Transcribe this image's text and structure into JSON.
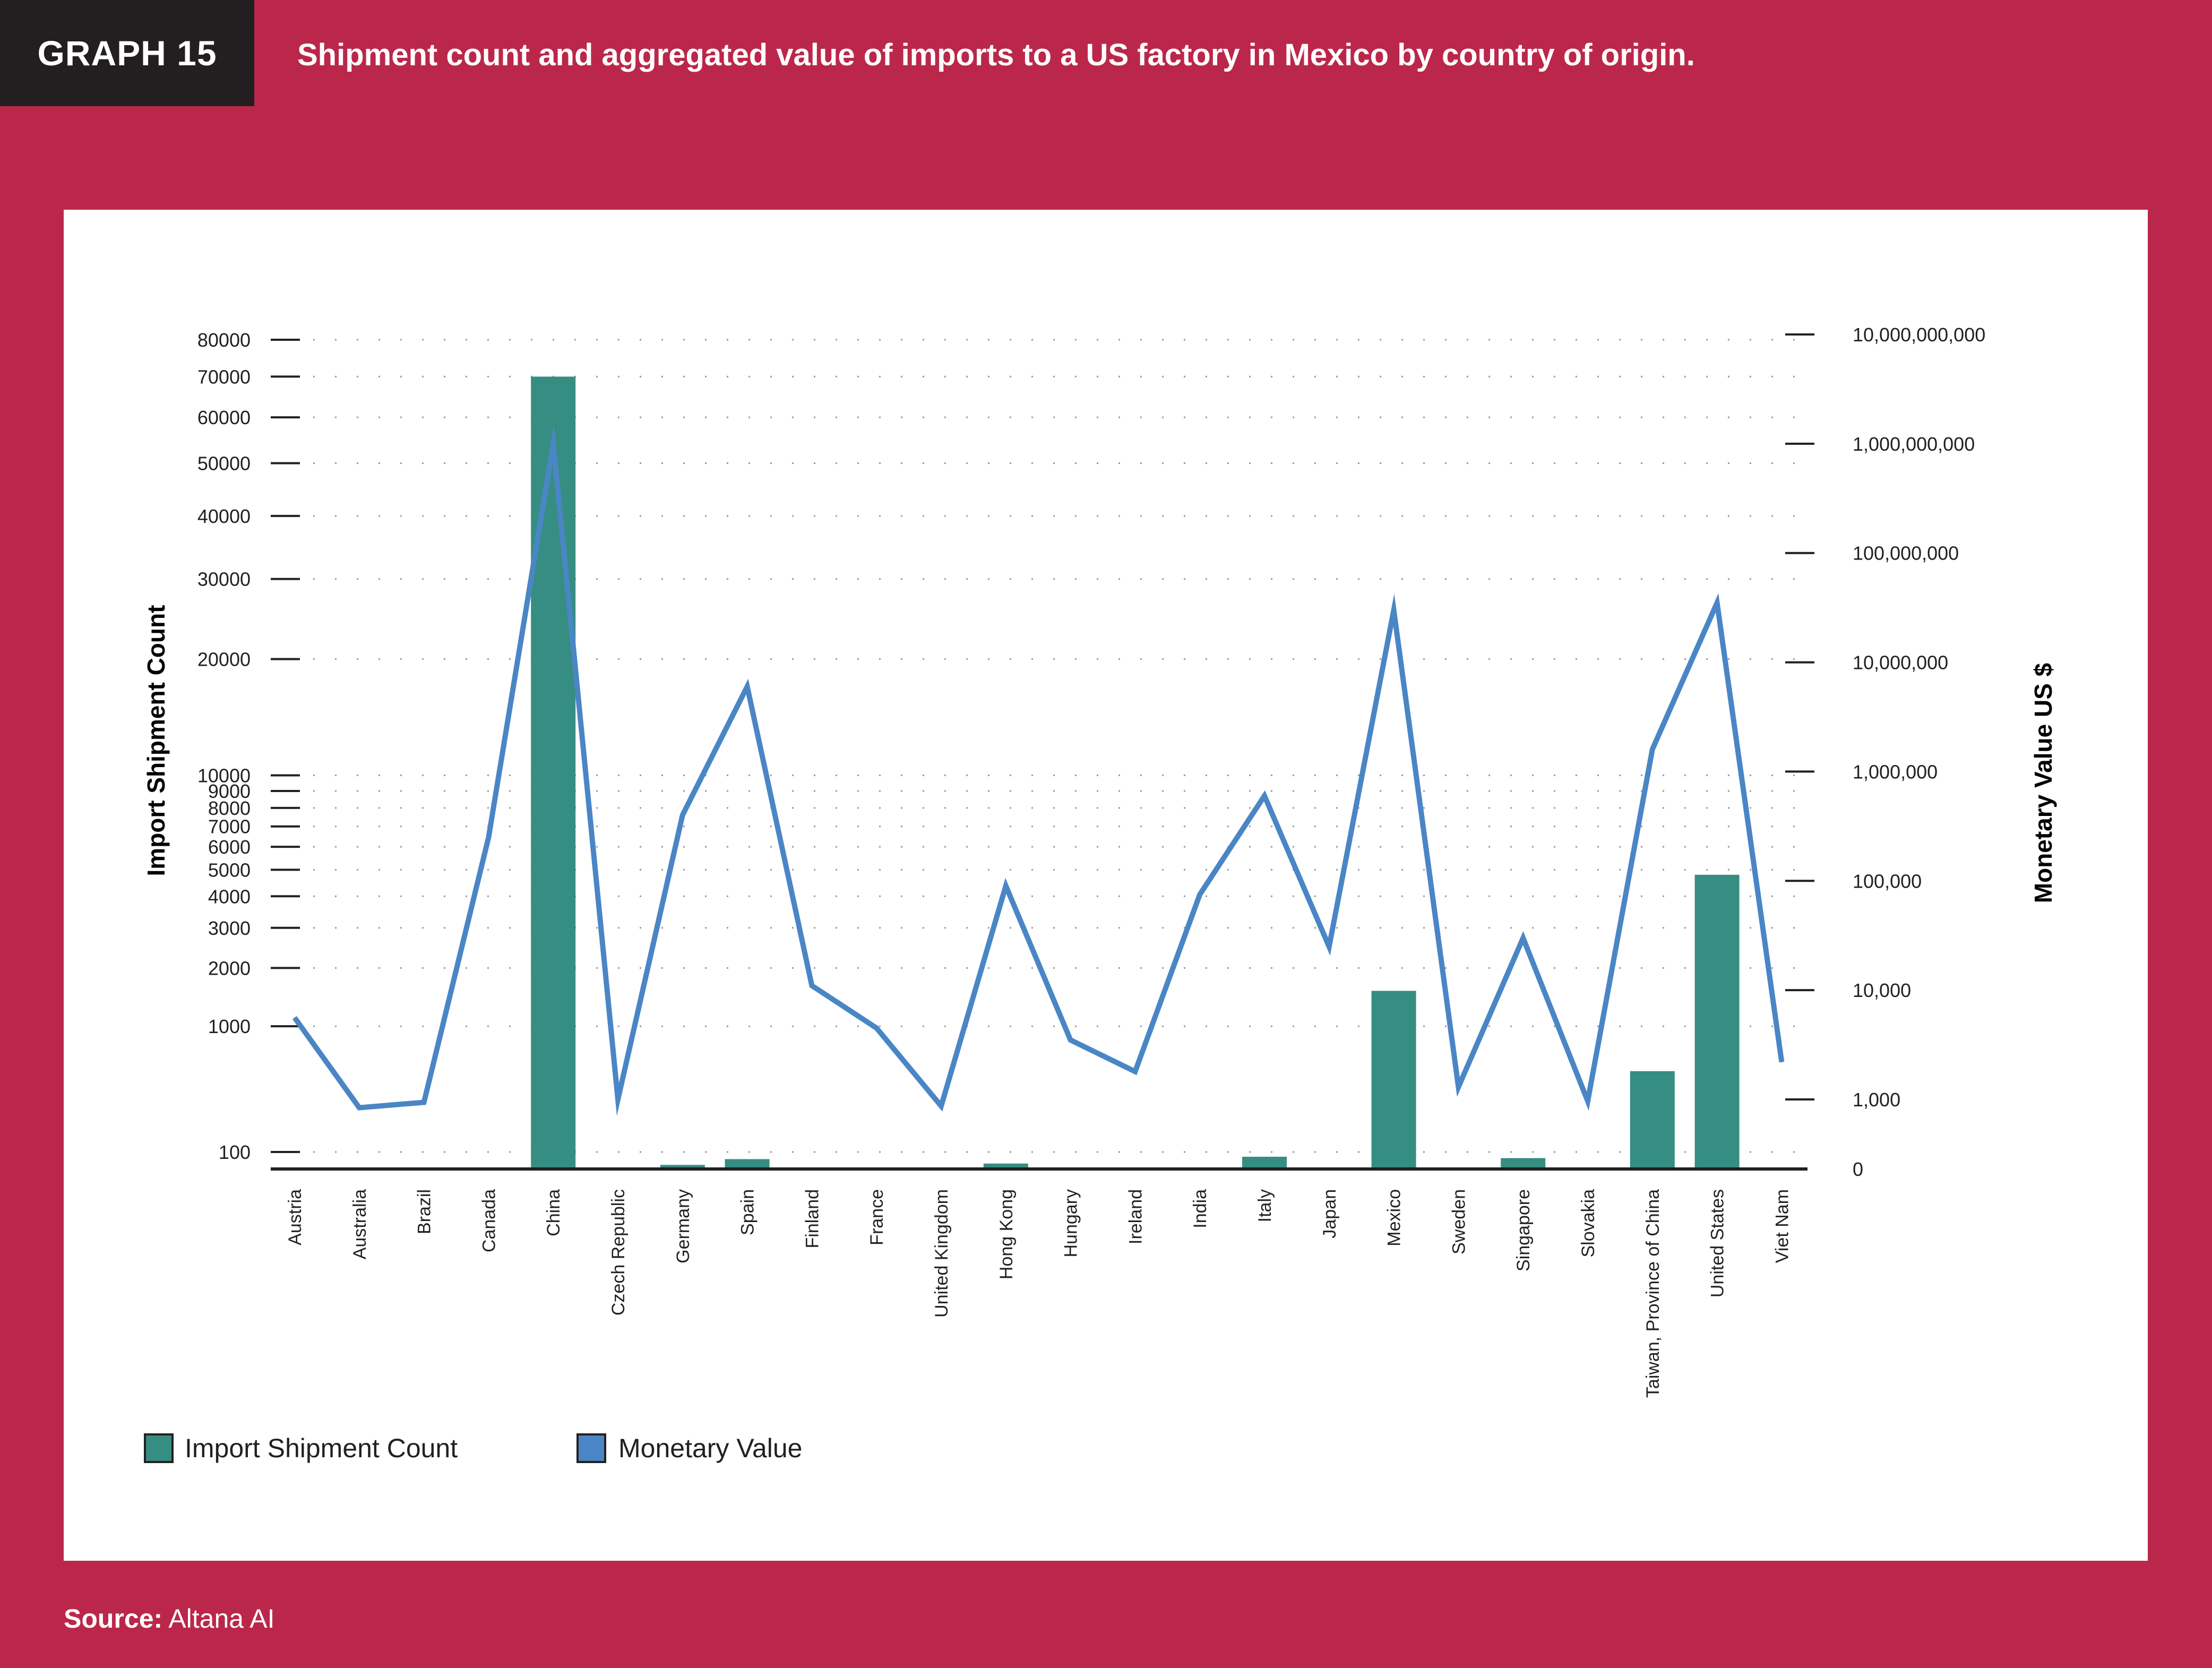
{
  "header": {
    "tag": "GRAPH 15",
    "title": "Shipment count and aggregated value of imports to a US factory in Mexico by country of origin."
  },
  "footer": {
    "source_label": "Source:",
    "source_value": "Altana AI"
  },
  "colors": {
    "background": "#bb274a",
    "panel": "#ffffff",
    "bar": "#368d81",
    "line": "#4a86c5",
    "text": "#231f20"
  },
  "chart_data": {
    "type": "bar+line",
    "title": "Shipment count and aggregated value of imports to a US factory in Mexico by country of origin.",
    "categories": [
      "Austria",
      "Australia",
      "Brazil",
      "Canada",
      "China",
      "Czech Republic",
      "Germany",
      "Spain",
      "Finland",
      "France",
      "United Kingdom",
      "Hong Kong",
      "Hungary",
      "Ireland",
      "India",
      "Italy",
      "Japan",
      "Mexico",
      "Sweden",
      "Singapore",
      "Slovakia",
      "Taiwan, Province of China",
      "United States",
      "Viet Nam"
    ],
    "series": [
      {
        "name": "Import Shipment Count",
        "type": "bar",
        "axis": "left",
        "values": [
          4,
          0,
          0,
          9,
          70000,
          0,
          24,
          58,
          0,
          0,
          0,
          32,
          0,
          0,
          0,
          72,
          5,
          1550,
          0,
          64,
          0,
          520,
          4800,
          0
        ]
      },
      {
        "name": "Monetary Value",
        "type": "line",
        "axis": "right",
        "values": [
          5600,
          440,
          750,
          250000,
          1000000000,
          1000,
          400000,
          6000000,
          11000,
          4500,
          520,
          90000,
          3500,
          1800,
          75000,
          600000,
          25000,
          30000000,
          1300,
          30000,
          850,
          1600000,
          35000000,
          2200
        ]
      }
    ],
    "left_axis": {
      "label": "Import Shipment Count",
      "ticks": [
        100,
        1000,
        2000,
        3000,
        4000,
        5000,
        6000,
        7000,
        8000,
        9000,
        10000,
        20000,
        30000,
        40000,
        50000,
        60000,
        70000,
        80000
      ],
      "tick_labels": [
        "100",
        "1000",
        "2000",
        "3000",
        "4000",
        "5000",
        "6000",
        "7000",
        "8000",
        "9000",
        "10000",
        "20000",
        "30000",
        "40000",
        "50000",
        "60000",
        "70000",
        "80000"
      ]
    },
    "right_axis": {
      "label": "Monetary Value US $",
      "ticks": [
        0,
        1000,
        10000,
        100000,
        1000000,
        10000000,
        100000000,
        1000000000,
        10000000000
      ],
      "tick_labels": [
        "0",
        "1,000",
        "10,000",
        "100,000",
        "1,000,000",
        "10,000,000",
        "100,000,000",
        "1,000,000,000",
        "10,000,000,000"
      ]
    },
    "legend": [
      "Import Shipment Count",
      "Monetary Value"
    ],
    "legend_position": "bottom-left",
    "grid": "dotted horizontal"
  }
}
